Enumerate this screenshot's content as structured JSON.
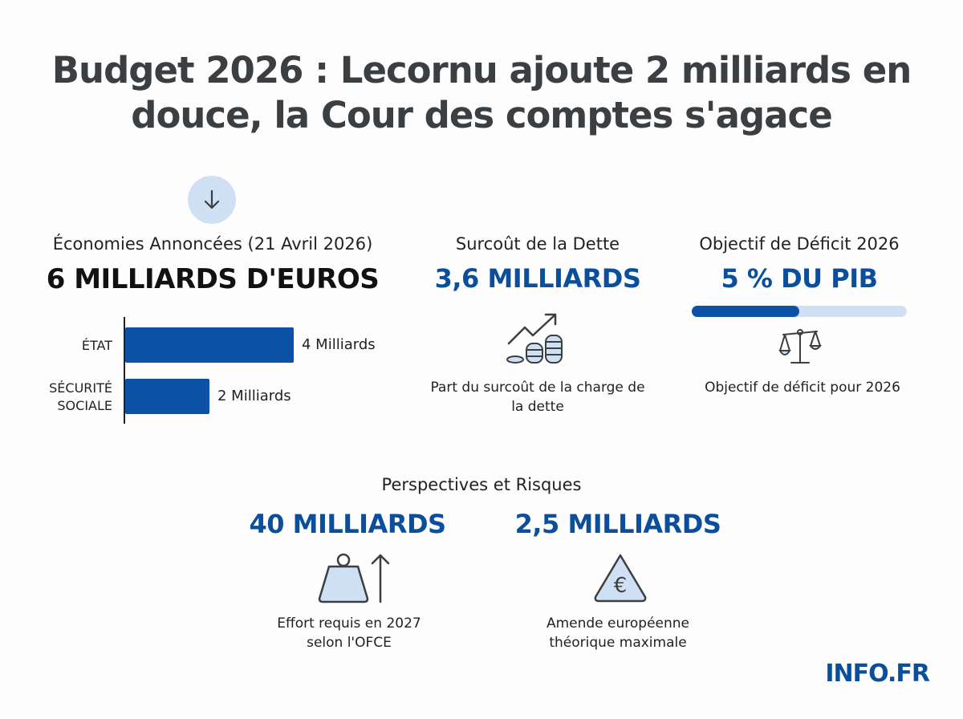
{
  "title": "Budget 2026 : Lecornu ajoute 2 milliards en douce, la Cour des comptes s'agace",
  "economies": {
    "icon": "arrow-down-icon",
    "label": "Économies Annoncées (21 Avril 2026)",
    "value": "6 MILLIARDS D'EUROS"
  },
  "chart_data": {
    "type": "bar",
    "orientation": "horizontal",
    "categories": [
      "ÉTAT",
      "SÉCURITÉ SOCIALE"
    ],
    "values": [
      4,
      2
    ],
    "value_labels": [
      "4 Milliards",
      "2 Milliards"
    ],
    "unit": "Milliards",
    "color": "#0b52a6"
  },
  "dette": {
    "label": "Surcoût de la Dette",
    "value": "3,6 MILLIARDS",
    "icon": "coins-trend-up-icon",
    "description": "Part du surcoût de la charge de la dette"
  },
  "deficit": {
    "label": "Objectif de Déficit 2026",
    "value": "5 % DU PIB",
    "progress": 0.5,
    "icon": "scale-icon",
    "description": "Objectif de déficit pour 2026"
  },
  "perspectives": {
    "label": "Perspectives et Risques",
    "items": [
      {
        "value": "40 MILLIARDS",
        "icon": "weight-arrow-up-icon",
        "description_1": "Effort requis en 2027",
        "description_2": "selon l'OFCE"
      },
      {
        "value": "2,5 MILLIARDS",
        "icon": "euro-warning-icon",
        "description_1": "Amende européenne",
        "description_2": "théorique maximale"
      }
    ]
  },
  "brand": "INFO.FR",
  "colors": {
    "accent": "#0b4f9c",
    "light": "#cfe0f5",
    "title": "#3c3f42"
  }
}
